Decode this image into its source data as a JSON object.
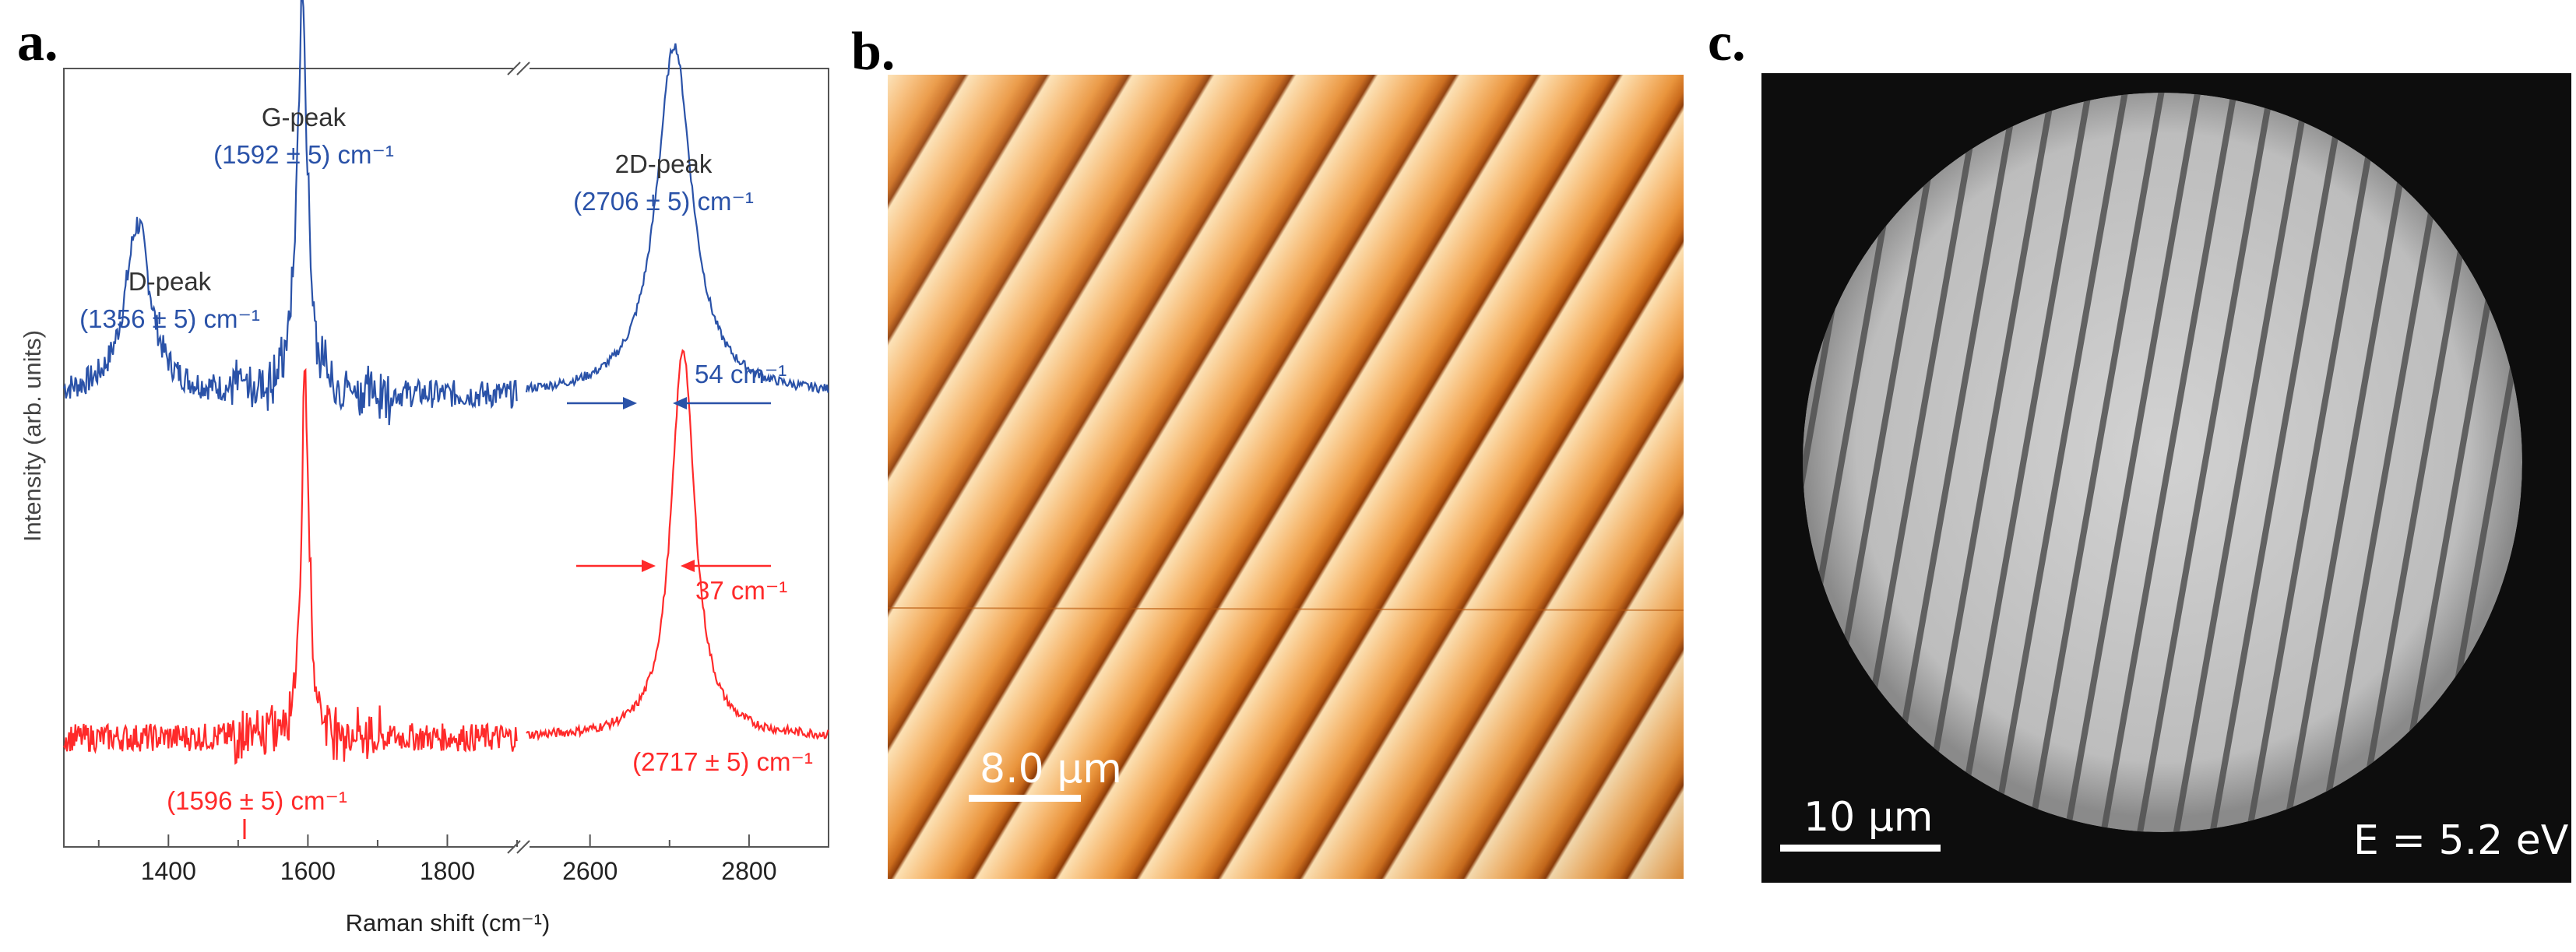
{
  "panels": {
    "a": "a.",
    "b": "b.",
    "c": "c."
  },
  "chart_data": {
    "type": "line",
    "xlabel": "Raman shift (cm⁻¹)",
    "ylabel": "Intensity (arb. units)",
    "broken_axis": true,
    "segments": [
      {
        "xlim": [
          1250,
          1900
        ],
        "ticks": [
          1400,
          1600,
          1800
        ]
      },
      {
        "xlim": [
          2520,
          2900
        ],
        "ticks": [
          2600,
          2800
        ]
      }
    ],
    "tick_labels": [
      "1400",
      "1600",
      "1800",
      "2600",
      "2800"
    ],
    "series": [
      {
        "color": "#2a52a8",
        "baseline": 0.58,
        "peaks": [
          {
            "x": 1356,
            "height": 0.22,
            "width": 22
          },
          {
            "x": 1592,
            "height": 0.5,
            "width": 9
          },
          {
            "x": 2706,
            "height": 0.45,
            "width": 27
          }
        ]
      },
      {
        "color": "#ff2a2a",
        "baseline": 0.14,
        "peaks": [
          {
            "x": 1596,
            "height": 0.45,
            "width": 7
          },
          {
            "x": 2717,
            "height": 0.5,
            "width": 18
          }
        ]
      }
    ],
    "annotations": {
      "d_peak_label": "D-peak",
      "d_peak_value": "(1356 ± 5) cm⁻¹",
      "g_peak_label": "G-peak",
      "g_peak_value": "(1592 ± 5) cm⁻¹",
      "peak_2d_label": "2D-peak",
      "peak_2d_value_blue": "(2706 ± 5) cm⁻¹",
      "fwhm_blue": "54 cm⁻¹",
      "fwhm_red": "37 cm⁻¹",
      "peak_2d_value_red": "(2717 ± 5) cm⁻¹",
      "g_peak_value_red": "(1596 ± 5) cm⁻¹"
    }
  },
  "afm": {
    "scalebar_label": "8.0 µm"
  },
  "leem": {
    "scalebar_label": "10 µm",
    "energy_label": "E = 5.2 eV"
  },
  "colors": {
    "blue": "#2a52a8",
    "red": "#ff2a2a",
    "annotation_dark": "#333333",
    "afm_light": "#fcd6a0",
    "afm_dark": "#a84a08"
  }
}
